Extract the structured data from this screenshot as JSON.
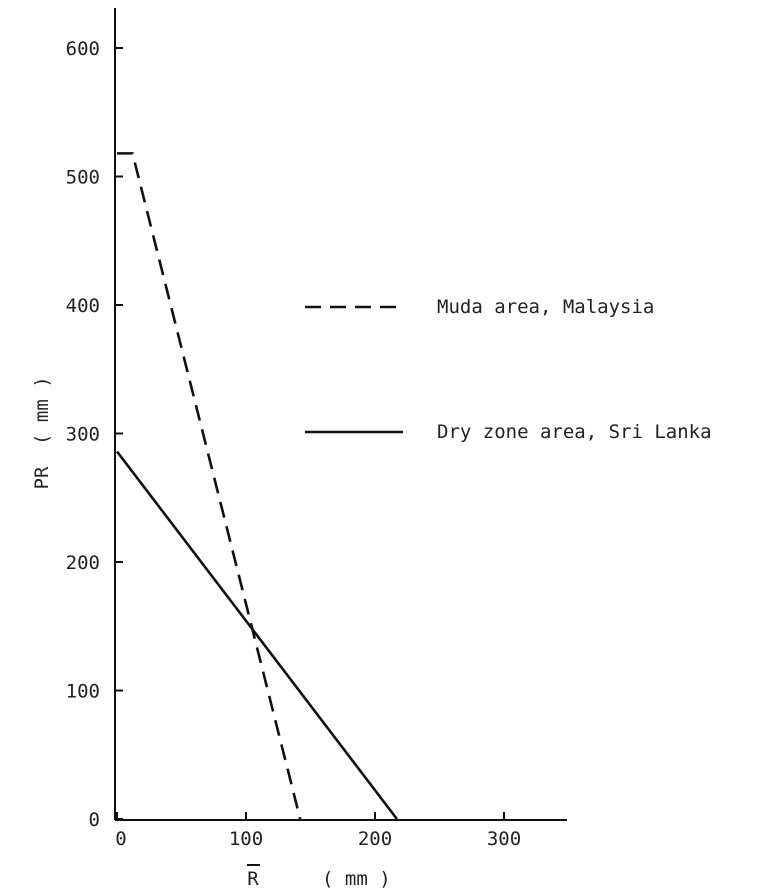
{
  "chart_data": {
    "type": "line",
    "title": "",
    "xlabel": "R",
    "xlabel_overbar": true,
    "xlabel_unit": "( mm )",
    "ylabel": "PR",
    "ylabel_unit": "( mm )",
    "xlim": [
      0,
      350
    ],
    "ylim": [
      0,
      620
    ],
    "xticks": [
      0,
      100,
      200,
      300
    ],
    "yticks": [
      0,
      100,
      200,
      300,
      400,
      500,
      600
    ],
    "grid": false,
    "legend_placement": "right",
    "series": [
      {
        "name": "Muda area, Malaysia",
        "style": "dashed",
        "color": "#111111",
        "points": [
          [
            0,
            518
          ],
          [
            12,
            518
          ],
          [
            142,
            0
          ]
        ]
      },
      {
        "name": "Dry zone area, Sri Lanka",
        "style": "solid",
        "color": "#111111",
        "points": [
          [
            0,
            286
          ],
          [
            217,
            0
          ]
        ]
      }
    ]
  }
}
